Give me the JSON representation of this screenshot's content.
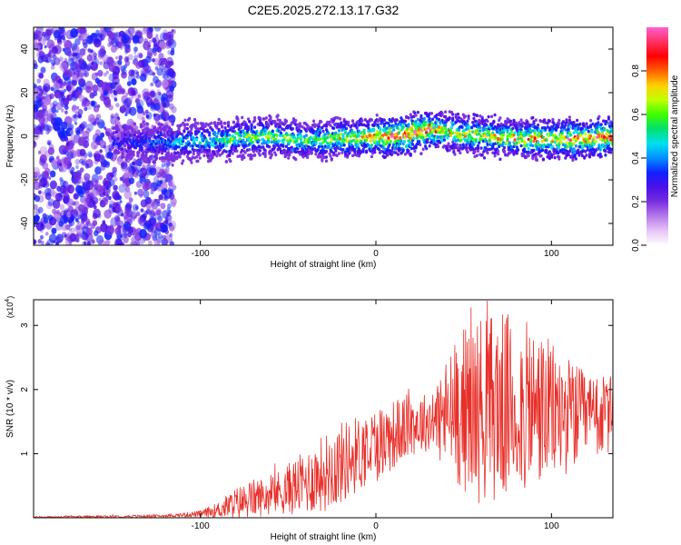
{
  "title": "C2E5.2025.272.13.17.G32",
  "colors": {
    "snr_line": "#e8302a",
    "axis": "#000000",
    "colormap": [
      "#ffffff",
      "#e7c4f5",
      "#b57ae8",
      "#7a2fe0",
      "#4a10e8",
      "#1020ff",
      "#0090ff",
      "#00e0f0",
      "#00e070",
      "#40ff00",
      "#c0ff00",
      "#ffd000",
      "#ff6000",
      "#ff0000",
      "#ff3060",
      "#ff60d0"
    ]
  },
  "chart_data": [
    {
      "type": "heatmap",
      "name": "spectrogram",
      "title": "C2E5.2025.272.13.17.G32",
      "xlabel": "Height of straight line (km)",
      "ylabel": "Frequency (Hz)",
      "xlim": [
        -195,
        135
      ],
      "ylim": [
        -50,
        50
      ],
      "xticks": [
        -100,
        0,
        100
      ],
      "yticks": [
        -40,
        -20,
        0,
        20,
        40
      ],
      "colorbar": {
        "label": "Normalized spectral amplitude",
        "range": [
          0.0,
          1.0
        ],
        "ticks": [
          0.0,
          0.2,
          0.4,
          0.6,
          0.8
        ]
      },
      "ridge": {
        "x": [
          -140,
          -120,
          -100,
          -80,
          -60,
          -40,
          -20,
          0,
          10,
          20,
          30,
          40,
          60,
          80,
          100,
          120,
          135
        ],
        "freq": [
          -3,
          -3,
          -2,
          -1,
          0,
          -2,
          -1,
          0,
          0,
          1,
          3,
          2,
          0,
          -1,
          -1,
          -1,
          0
        ],
        "peak_amplitude": [
          0.25,
          0.35,
          0.45,
          0.55,
          0.6,
          0.55,
          0.65,
          0.8,
          0.95,
          0.95,
          0.9,
          0.7,
          0.7,
          0.75,
          0.8,
          0.85,
          0.95
        ]
      },
      "noise_region_x": [
        -195,
        -115
      ]
    },
    {
      "type": "line",
      "name": "snr",
      "xlabel": "Height of straight line (km)",
      "ylabel": "SNR (10 * v/v)",
      "scale_label": "(x10",
      "scale_exponent": "4",
      "scale_close": ")",
      "xlim": [
        -195,
        135
      ],
      "ylim": [
        0,
        3.4
      ],
      "xticks": [
        -100,
        0,
        100
      ],
      "yticks": [
        1,
        2,
        3
      ],
      "series": [
        {
          "name": "SNR",
          "x": [
            -195,
            -150,
            -120,
            -100,
            -90,
            -80,
            -70,
            -60,
            -50,
            -40,
            -30,
            -20,
            -10,
            0,
            10,
            20,
            30,
            40,
            50,
            60,
            70,
            80,
            90,
            100,
            110,
            120,
            135
          ],
          "mean": [
            0.01,
            0.02,
            0.03,
            0.06,
            0.12,
            0.22,
            0.3,
            0.35,
            0.45,
            0.55,
            0.7,
            0.85,
            1.0,
            1.15,
            1.3,
            1.45,
            1.5,
            1.6,
            1.7,
            1.7,
            1.75,
            1.72,
            1.7,
            1.65,
            1.6,
            1.55,
            1.6
          ],
          "amp": [
            0.01,
            0.02,
            0.02,
            0.05,
            0.12,
            0.25,
            0.3,
            0.3,
            0.4,
            0.5,
            0.6,
            0.65,
            0.6,
            0.6,
            0.55,
            0.5,
            0.45,
            0.9,
            1.3,
            1.5,
            1.5,
            1.4,
            1.3,
            1.1,
            0.9,
            0.7,
            0.6
          ]
        }
      ]
    }
  ]
}
